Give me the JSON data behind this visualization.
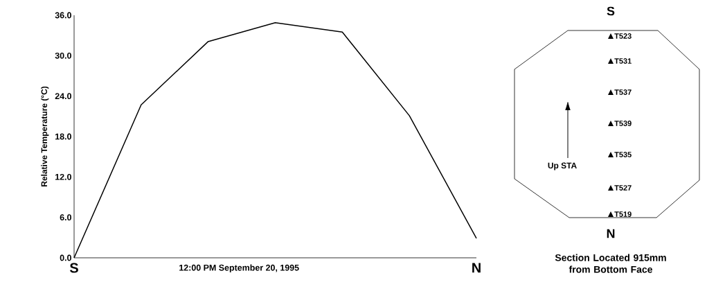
{
  "chart_data": [
    {
      "type": "line",
      "ylabel": "Relative Temperature (°C)",
      "xlabel": "12:00 PM September 20, 1995",
      "categories": [
        "S",
        null,
        null,
        null,
        null,
        null,
        "N"
      ],
      "values": [
        0,
        22.7,
        32.1,
        34.9,
        33.5,
        21.1,
        2.9
      ],
      "color": "#000000",
      "marker": "none",
      "line_style": "solid",
      "grid": false,
      "ylim": [
        0,
        36
      ],
      "yticks": [
        {
          "value": 0,
          "label": "0.0"
        },
        {
          "value": 6,
          "label": "6.0"
        },
        {
          "value": 12,
          "label": "12.0"
        },
        {
          "value": 18,
          "label": "18.0"
        },
        {
          "value": 24,
          "label": "24.0"
        },
        {
          "value": 30,
          "label": "30.0"
        },
        {
          "value": 36,
          "label": "36.0"
        }
      ]
    },
    {
      "type": "other",
      "title": "Section Located 915mm from Bottom Face",
      "annotations": [
        "S",
        "N",
        "Up STA",
        "T523",
        "T531",
        "T537",
        "T539",
        "T535",
        "T527",
        "T519"
      ]
    }
  ]
}
